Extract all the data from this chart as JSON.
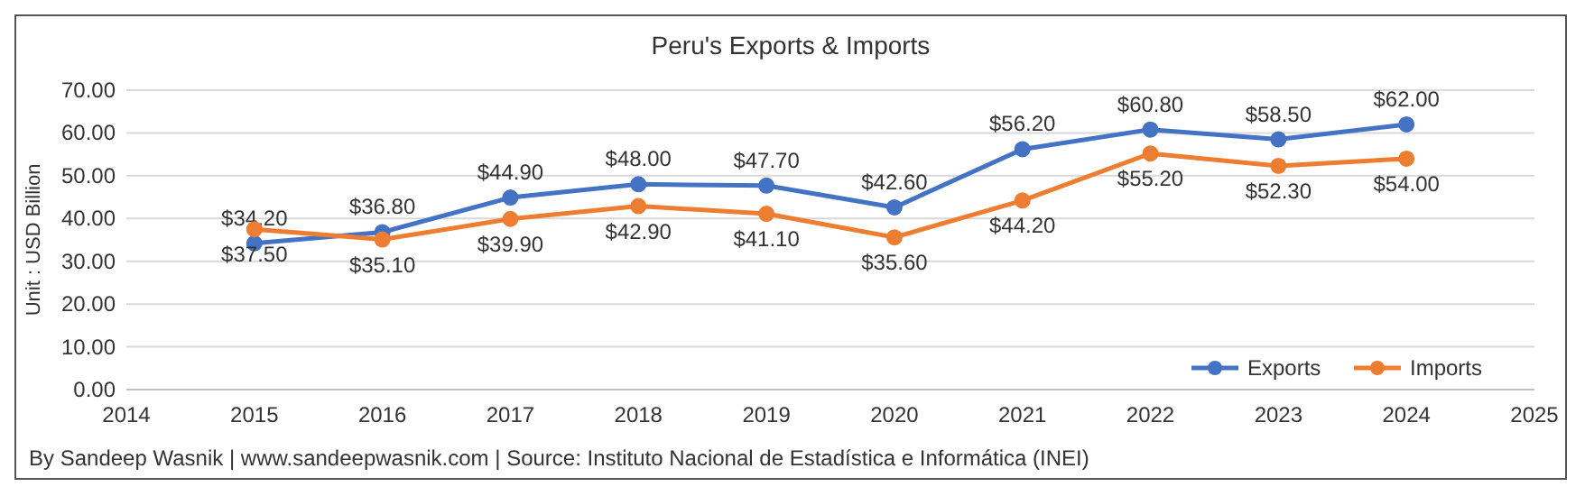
{
  "chart_data": {
    "type": "line",
    "title": "Peru's Exports & Imports",
    "ylabel": "Unit : USD Billion",
    "x": [
      2015,
      2016,
      2017,
      2018,
      2019,
      2020,
      2021,
      2022,
      2023,
      2024
    ],
    "series": [
      {
        "name": "Exports",
        "color": "#4472c4",
        "values": [
          34.2,
          36.8,
          44.9,
          48.0,
          47.7,
          42.6,
          56.2,
          60.8,
          58.5,
          62.0
        ],
        "value_labels": [
          "$34.20",
          "$36.80",
          "$44.90",
          "$48.00",
          "$47.70",
          "$42.60",
          "$56.20",
          "$60.80",
          "$58.50",
          "$62.00"
        ]
      },
      {
        "name": "Imports",
        "color": "#ed7d31",
        "values": [
          37.5,
          35.1,
          39.9,
          42.9,
          41.1,
          35.6,
          44.2,
          55.2,
          52.3,
          54.0
        ],
        "value_labels": [
          "$37.50",
          "$35.10",
          "$39.90",
          "$42.90",
          "$41.10",
          "$35.60",
          "$44.20",
          "$55.20",
          "$52.30",
          "$54.00"
        ]
      }
    ],
    "xlim": [
      2014,
      2025
    ],
    "xticks": [
      2014,
      2015,
      2016,
      2017,
      2018,
      2019,
      2020,
      2021,
      2022,
      2023,
      2024,
      2025
    ],
    "ylim": [
      0,
      70
    ],
    "yticks": [
      {
        "value": 0,
        "label": "0.00"
      },
      {
        "value": 10,
        "label": "10.00"
      },
      {
        "value": 20,
        "label": "20.00"
      },
      {
        "value": 30,
        "label": "30.00"
      },
      {
        "value": 40,
        "label": "40.00"
      },
      {
        "value": 50,
        "label": "50.00"
      },
      {
        "value": 60,
        "label": "60.00"
      },
      {
        "value": 70,
        "label": "70.00"
      }
    ],
    "grid": "y",
    "legend": "bottom right",
    "marker": "circle",
    "line_style": "solid",
    "annotations": [
      "By Sandeep Wasnik | www.sandeepwasnik.com | Source: Instituto Nacional de Estadística e Informática (INEI)"
    ]
  }
}
